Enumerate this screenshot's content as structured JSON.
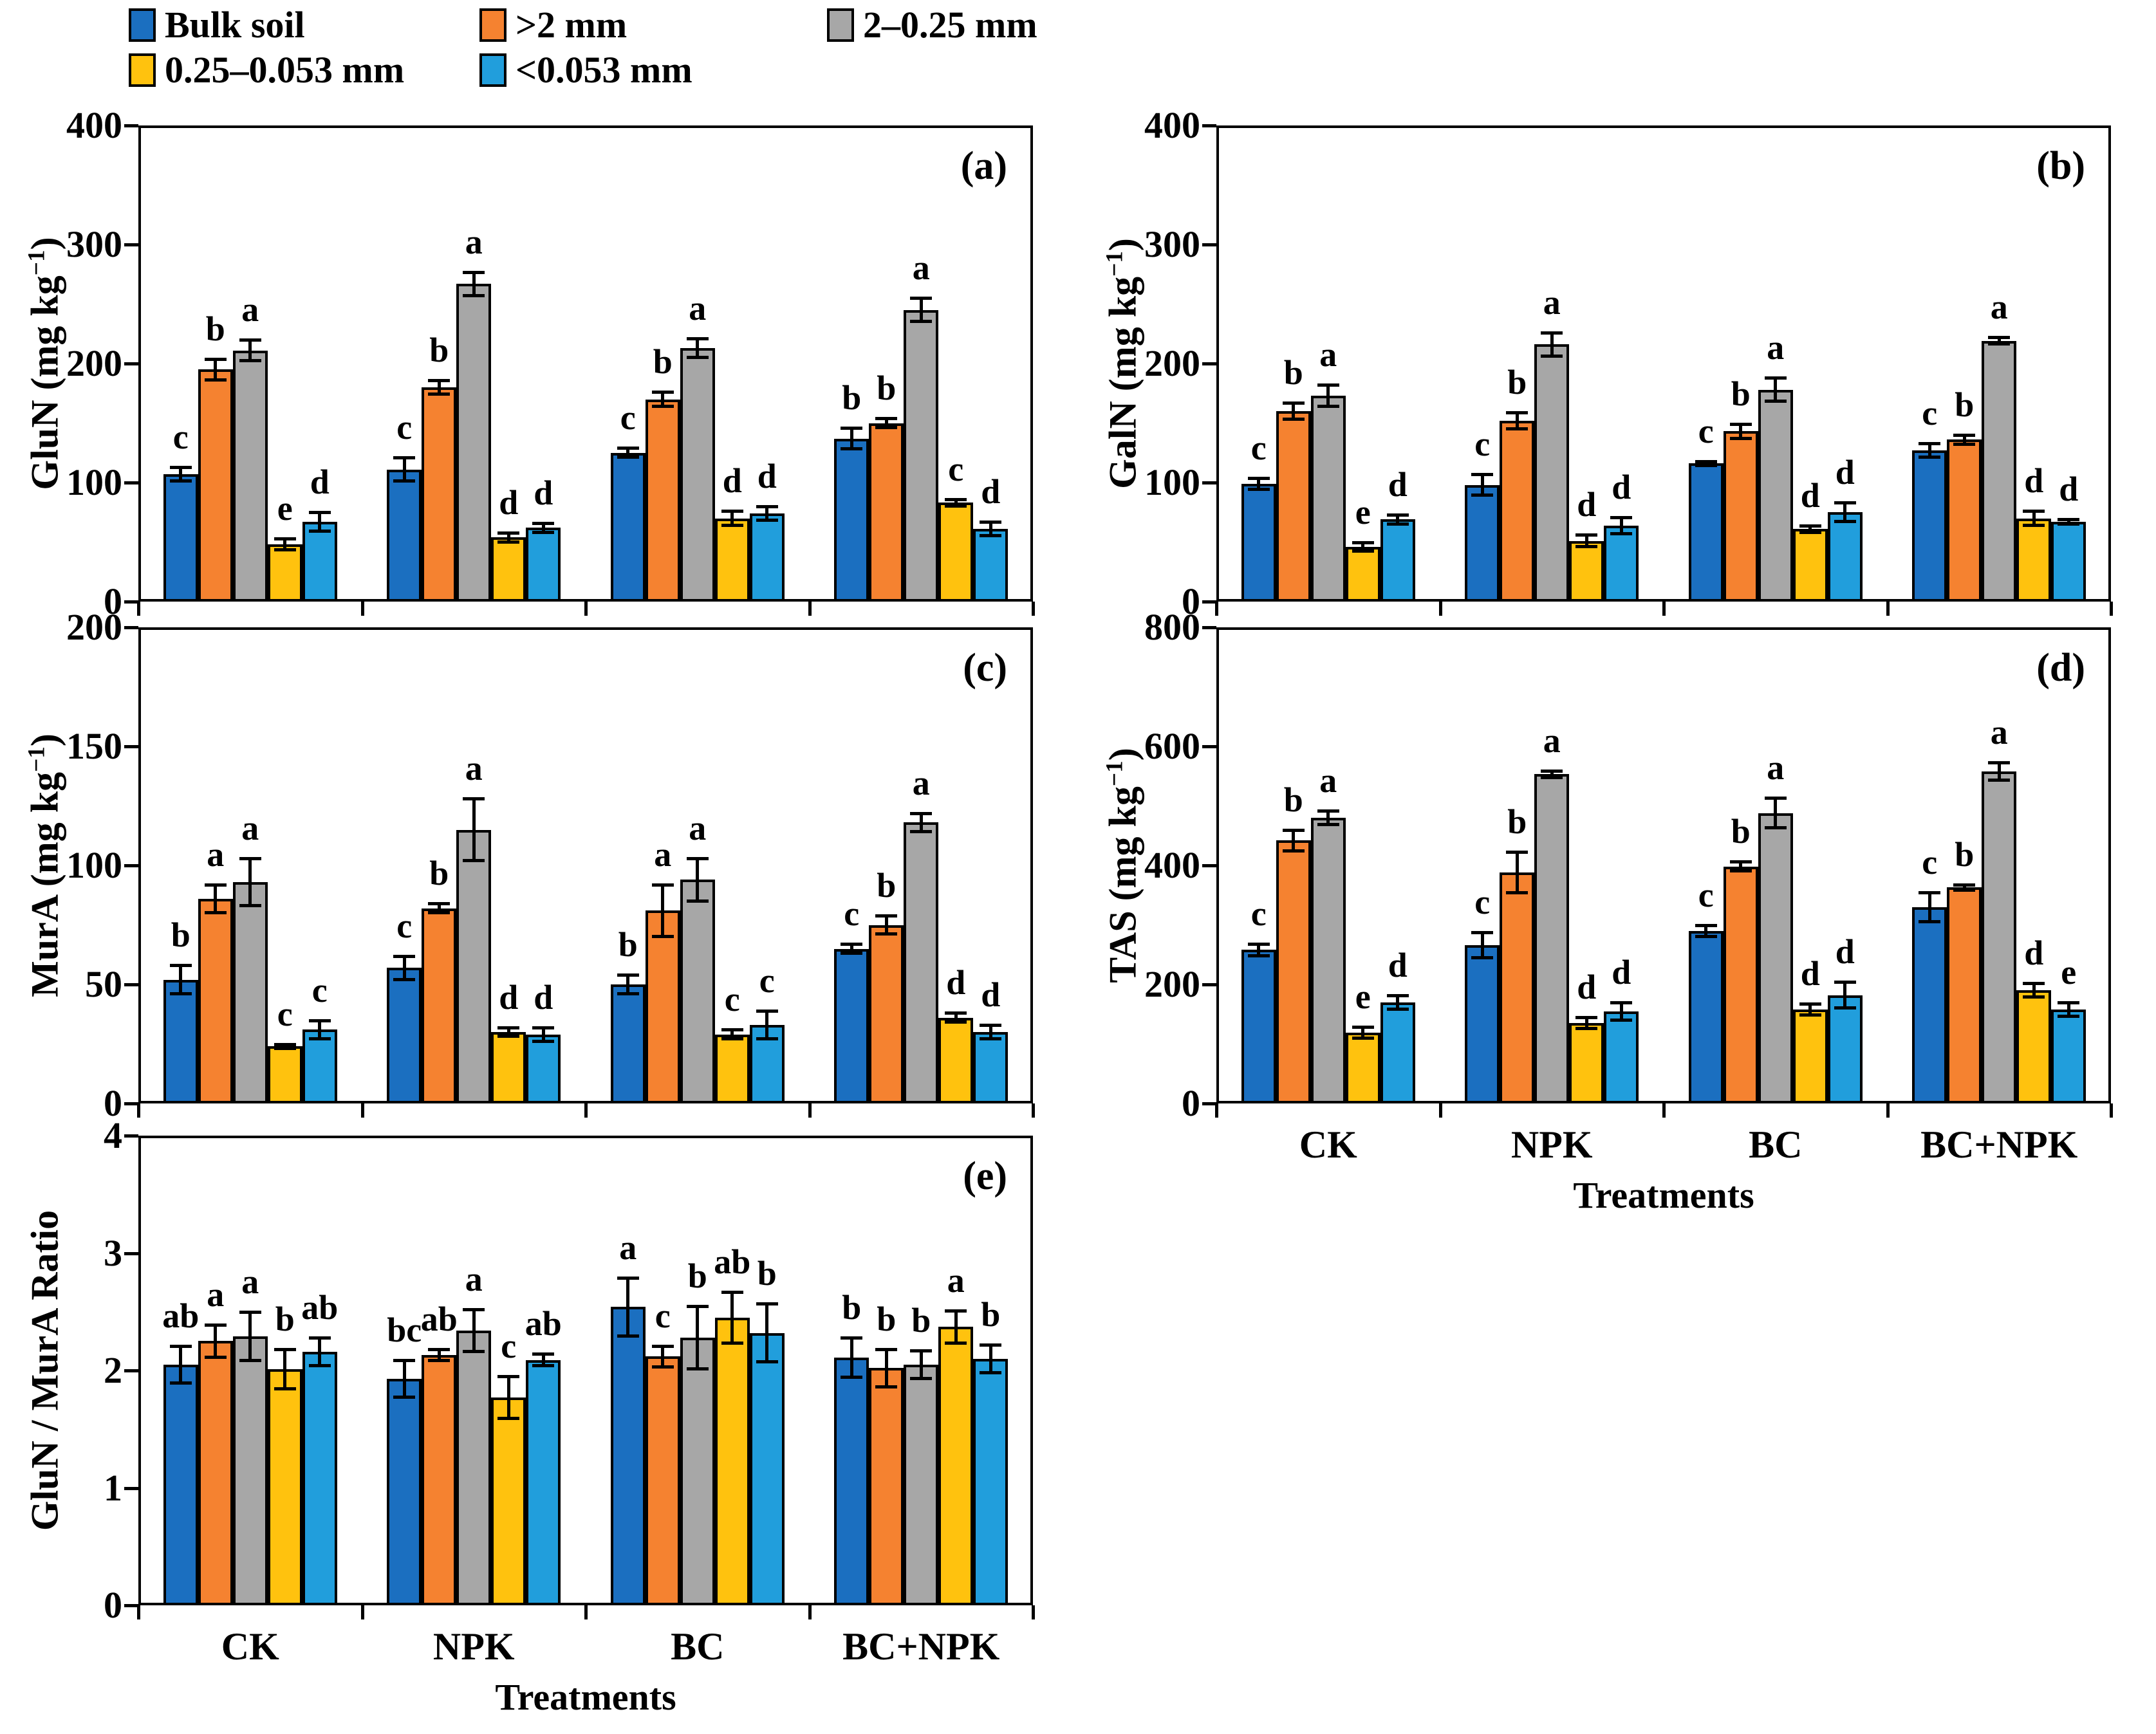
{
  "legend": {
    "items": [
      {
        "label": "Bulk soil",
        "color": "#1B6FC0"
      },
      {
        "label": ">2 mm",
        "color": "#F58230"
      },
      {
        "label": "2–0.25 mm",
        "color": "#A7A7A7"
      },
      {
        "label": "0.25–0.053 mm",
        "color": "#FFC20E"
      },
      {
        "label": "<0.053 mm",
        "color": "#219EDC"
      }
    ]
  },
  "xlabel": "Treatments",
  "categories": [
    "CK",
    "NPK",
    "BC",
    "BC+NPK"
  ],
  "chart_data": [
    {
      "id": "a",
      "tag": "(a)",
      "type": "bar",
      "ylabel": "GluN (mg kg⁻¹)",
      "ylim": [
        0,
        400
      ],
      "yticks": [
        0,
        100,
        200,
        300,
        400
      ],
      "categories": [
        "CK",
        "NPK",
        "BC",
        "BC+NPK"
      ],
      "show_x_labels": false,
      "series": [
        {
          "name": "Bulk soil",
          "values": [
            107,
            111,
            125,
            137
          ],
          "errors": [
            6,
            10,
            4,
            9
          ],
          "letters": [
            "c",
            "c",
            "c",
            "b"
          ]
        },
        {
          "name": ">2 mm",
          "values": [
            195,
            180,
            170,
            150
          ],
          "errors": [
            9,
            6,
            6,
            4
          ],
          "letters": [
            "b",
            "b",
            "b",
            "b"
          ]
        },
        {
          "name": "2–0.25 mm",
          "values": [
            211,
            267,
            213,
            245
          ],
          "errors": [
            9,
            10,
            8,
            10
          ],
          "letters": [
            "a",
            "a",
            "a",
            "a"
          ]
        },
        {
          "name": "0.25–0.053 mm",
          "values": [
            48,
            54,
            70,
            83
          ],
          "errors": [
            5,
            4,
            6,
            3
          ],
          "letters": [
            "e",
            "d",
            "d",
            "c"
          ]
        },
        {
          "name": "<0.053 mm",
          "values": [
            67,
            62,
            74,
            61
          ],
          "errors": [
            8,
            4,
            6,
            6
          ],
          "letters": [
            "d",
            "d",
            "d",
            "d"
          ]
        }
      ]
    },
    {
      "id": "b",
      "tag": "(b)",
      "type": "bar",
      "ylabel": "GalN (mg kg⁻¹)",
      "ylim": [
        0,
        400
      ],
      "yticks": [
        0,
        100,
        200,
        300,
        400
      ],
      "categories": [
        "CK",
        "NPK",
        "BC",
        "BC+NPK"
      ],
      "show_x_labels": false,
      "series": [
        {
          "name": "Bulk soil",
          "values": [
            99,
            98,
            116,
            127
          ],
          "errors": [
            5,
            9,
            2,
            6
          ],
          "letters": [
            "c",
            "c",
            "c",
            "c"
          ]
        },
        {
          "name": ">2 mm",
          "values": [
            160,
            152,
            143,
            136
          ],
          "errors": [
            7,
            7,
            6,
            4
          ],
          "letters": [
            "b",
            "b",
            "b",
            "b"
          ]
        },
        {
          "name": "2–0.25 mm",
          "values": [
            173,
            216,
            178,
            219
          ],
          "errors": [
            9,
            10,
            10,
            3
          ],
          "letters": [
            "a",
            "a",
            "a",
            "a"
          ]
        },
        {
          "name": "0.25–0.053 mm",
          "values": [
            46,
            51,
            61,
            70
          ],
          "errors": [
            4,
            5,
            3,
            6
          ],
          "letters": [
            "e",
            "d",
            "d",
            "d"
          ]
        },
        {
          "name": "<0.053 mm",
          "values": [
            69,
            64,
            75,
            67
          ],
          "errors": [
            4,
            7,
            8,
            2
          ],
          "letters": [
            "d",
            "d",
            "d",
            "d"
          ]
        }
      ]
    },
    {
      "id": "c",
      "tag": "(c)",
      "type": "bar",
      "ylabel": "MurA (mg kg⁻¹)",
      "ylim": [
        0,
        200
      ],
      "yticks": [
        0,
        50,
        100,
        150,
        200
      ],
      "categories": [
        "CK",
        "NPK",
        "BC",
        "BC+NPK"
      ],
      "show_x_labels": false,
      "series": [
        {
          "name": "Bulk soil",
          "values": [
            52,
            57,
            50,
            65
          ],
          "errors": [
            6,
            5,
            4,
            2
          ],
          "letters": [
            "b",
            "c",
            "b",
            "c"
          ]
        },
        {
          "name": ">2 mm",
          "values": [
            86,
            82,
            81,
            75
          ],
          "errors": [
            6,
            2,
            11,
            4
          ],
          "letters": [
            "a",
            "b",
            "a",
            "b"
          ]
        },
        {
          "name": "2–0.25 mm",
          "values": [
            93,
            115,
            94,
            118
          ],
          "errors": [
            10,
            13,
            9,
            4
          ],
          "letters": [
            "a",
            "a",
            "a",
            "a"
          ]
        },
        {
          "name": "0.25–0.053 mm",
          "values": [
            24,
            30,
            29,
            36
          ],
          "errors": [
            1,
            2,
            2,
            2
          ],
          "letters": [
            "c",
            "d",
            "c",
            "d"
          ]
        },
        {
          "name": "<0.053 mm",
          "values": [
            31,
            29,
            33,
            30
          ],
          "errors": [
            4,
            3,
            6,
            3
          ],
          "letters": [
            "c",
            "d",
            "c",
            "d"
          ]
        }
      ]
    },
    {
      "id": "d",
      "tag": "(d)",
      "type": "bar",
      "ylabel": "TAS (mg kg⁻¹)",
      "ylim": [
        0,
        800
      ],
      "yticks": [
        0,
        200,
        400,
        600,
        800
      ],
      "categories": [
        "CK",
        "NPK",
        "BC",
        "BC+NPK"
      ],
      "show_x_labels": true,
      "xlabel": "Treatments",
      "series": [
        {
          "name": "Bulk soil",
          "values": [
            258,
            266,
            290,
            330
          ],
          "errors": [
            10,
            22,
            10,
            25
          ],
          "letters": [
            "c",
            "c",
            "c",
            "c"
          ]
        },
        {
          "name": ">2 mm",
          "values": [
            442,
            388,
            398,
            363
          ],
          "errors": [
            18,
            35,
            8,
            5
          ],
          "letters": [
            "b",
            "b",
            "b",
            "b"
          ]
        },
        {
          "name": "2–0.25 mm",
          "values": [
            480,
            553,
            488,
            558
          ],
          "errors": [
            12,
            6,
            25,
            15
          ],
          "letters": [
            "a",
            "a",
            "a",
            "a"
          ]
        },
        {
          "name": "0.25–0.053 mm",
          "values": [
            119,
            135,
            158,
            190
          ],
          "errors": [
            10,
            10,
            10,
            12
          ],
          "letters": [
            "e",
            "d",
            "d",
            "d"
          ]
        },
        {
          "name": "<0.053 mm",
          "values": [
            170,
            155,
            182,
            158
          ],
          "errors": [
            12,
            15,
            22,
            12
          ],
          "letters": [
            "d",
            "d",
            "d",
            "e"
          ]
        }
      ]
    },
    {
      "id": "e",
      "tag": "(e)",
      "type": "bar",
      "ylabel": "GluN / MurA Ratio",
      "ylim": [
        0,
        4
      ],
      "yticks": [
        0,
        1,
        2,
        3,
        4
      ],
      "categories": [
        "CK",
        "NPK",
        "BC",
        "BC+NPK"
      ],
      "show_x_labels": true,
      "xlabel": "Treatments",
      "series": [
        {
          "name": "Bulk soil",
          "values": [
            2.05,
            1.93,
            2.54,
            2.11
          ],
          "errors": [
            0.16,
            0.16,
            0.25,
            0.17
          ],
          "letters": [
            "ab",
            "bc",
            "a",
            "b"
          ]
        },
        {
          "name": ">2 mm",
          "values": [
            2.25,
            2.13,
            2.12,
            2.02
          ],
          "errors": [
            0.14,
            0.05,
            0.09,
            0.16
          ],
          "letters": [
            "a",
            "ab",
            "c",
            "b"
          ]
        },
        {
          "name": "2–0.25 mm",
          "values": [
            2.29,
            2.34,
            2.28,
            2.05
          ],
          "errors": [
            0.21,
            0.18,
            0.27,
            0.12
          ],
          "letters": [
            "a",
            "a",
            "b",
            "b"
          ]
        },
        {
          "name": "0.25–0.053 mm",
          "values": [
            2.01,
            1.77,
            2.45,
            2.37
          ],
          "errors": [
            0.17,
            0.18,
            0.22,
            0.14
          ],
          "letters": [
            "b",
            "c",
            "ab",
            "a"
          ]
        },
        {
          "name": "<0.053 mm",
          "values": [
            2.16,
            2.09,
            2.32,
            2.1
          ],
          "errors": [
            0.12,
            0.05,
            0.25,
            0.12
          ],
          "letters": [
            "ab",
            "ab",
            "b",
            "b"
          ]
        }
      ]
    }
  ]
}
